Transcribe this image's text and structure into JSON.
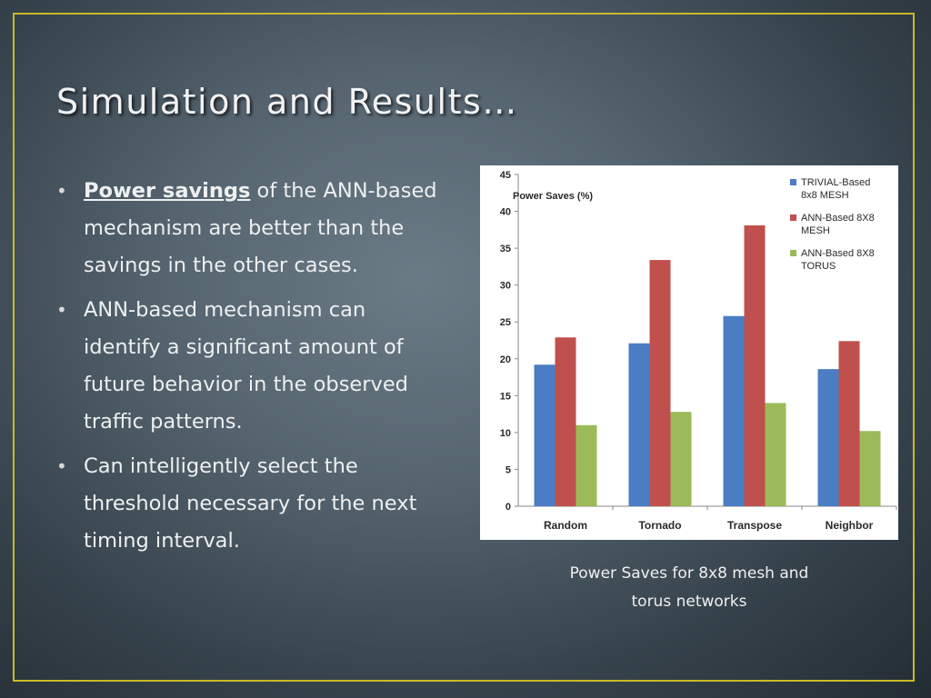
{
  "slide": {
    "title": "Simulation and Results…",
    "bullets": [
      {
        "em": "Power savings",
        "text": " of the ANN-based mechanism are better than the savings in the other cases."
      },
      {
        "em": "",
        "text": "ANN-based mechanism can identify a significant amount of future behavior in the observed traffic patterns."
      },
      {
        "em": "",
        "text": "Can intelligently select the threshold necessary for the next timing interval."
      }
    ],
    "caption_line1": "Power Saves for 8x8 mesh and",
    "caption_line2": "torus networks"
  },
  "chart_data": {
    "type": "bar",
    "title": "Power Saves (%)",
    "categories": [
      "Random",
      "Tornado",
      "Transpose",
      "Neighbor"
    ],
    "ylim": [
      0,
      45
    ],
    "yticks": [
      0,
      5,
      10,
      15,
      20,
      25,
      30,
      35,
      40,
      45
    ],
    "grid": false,
    "legend_position": "top-right",
    "series": [
      {
        "name": "TRIVIAL-Based 8x8 MESH",
        "legend_lines": [
          "TRIVIAL-Based",
          "8x8 MESH"
        ],
        "color": "#4a7dc4",
        "values": [
          19.2,
          22.1,
          25.8,
          18.6
        ]
      },
      {
        "name": "ANN-Based 8X8 MESH",
        "legend_lines": [
          "ANN-Based 8X8",
          "MESH"
        ],
        "color": "#c0504d",
        "values": [
          22.9,
          33.4,
          38.1,
          22.4
        ]
      },
      {
        "name": "ANN-Based 8X8 TORUS",
        "legend_lines": [
          "ANN-Based 8X8",
          "TORUS"
        ],
        "color": "#9bbb59",
        "values": [
          11.0,
          12.8,
          14.0,
          10.2
        ]
      }
    ]
  }
}
